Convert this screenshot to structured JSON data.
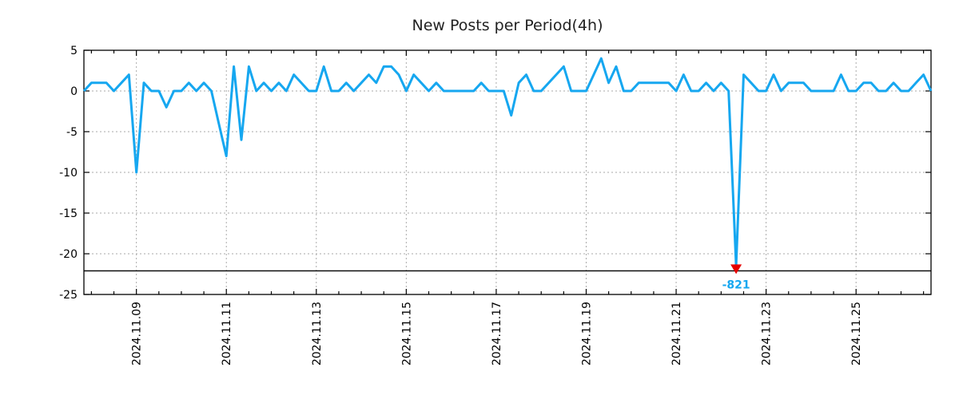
{
  "chart_data": {
    "type": "line",
    "title": "New Posts per Period(4h)",
    "x_axis": {
      "tick_labels": [
        "2024.11.09",
        "2024.11.11",
        "2024.11.13",
        "2024.11.15",
        "2024.11.17",
        "2024.11.19",
        "2024.11.21",
        "2024.11.23",
        "2024.11.25"
      ],
      "start": "2024-11-07 20:00",
      "step_hours": 4,
      "first_major_tick_point_index": 7,
      "major_tick_every_points": 12,
      "minor_tick_every_points": 3
    },
    "y_axis": {
      "ticks": [
        5,
        0,
        -5,
        -10,
        -15,
        -20,
        -25
      ],
      "range": [
        -25,
        5
      ]
    },
    "grid": true,
    "legend": "none",
    "series": [
      {
        "name": "New Posts",
        "color": "#16a7f0",
        "line_width": 3,
        "values": [
          0,
          1,
          1,
          1,
          0,
          1,
          2,
          -10,
          1,
          0,
          0,
          -2,
          0,
          0,
          1,
          0,
          1,
          0,
          -4,
          -8,
          3,
          -6,
          3,
          0,
          1,
          0,
          1,
          0,
          2,
          1,
          0,
          0,
          3,
          0,
          0,
          1,
          0,
          1,
          2,
          1,
          3,
          3,
          2,
          0,
          2,
          1,
          0,
          1,
          0,
          0,
          0,
          0,
          0,
          1,
          0,
          0,
          0,
          -3,
          1,
          2,
          0,
          0,
          1,
          2,
          3,
          0,
          0,
          0,
          2,
          4,
          1,
          3,
          0,
          0,
          1,
          1,
          1,
          1,
          1,
          0,
          2,
          0,
          0,
          1,
          0,
          1,
          0,
          -821,
          2,
          1,
          0,
          0,
          2,
          0,
          1,
          1,
          1,
          0,
          0,
          0,
          0,
          2,
          0,
          0,
          1,
          1,
          0,
          0,
          1,
          0,
          0,
          1,
          2,
          0
        ]
      }
    ],
    "floor_line": {
      "value": -22.1,
      "color": "#000000"
    },
    "annotation": {
      "label": "-821",
      "value": -821,
      "point_index": 87,
      "marker": "down-triangle",
      "marker_color": "#e60000",
      "label_color": "#16a7f0"
    },
    "colors": {
      "frame": "#000000",
      "grid": "#aaaaaa",
      "title_text": "#222222",
      "tick_text": "#000000"
    }
  }
}
